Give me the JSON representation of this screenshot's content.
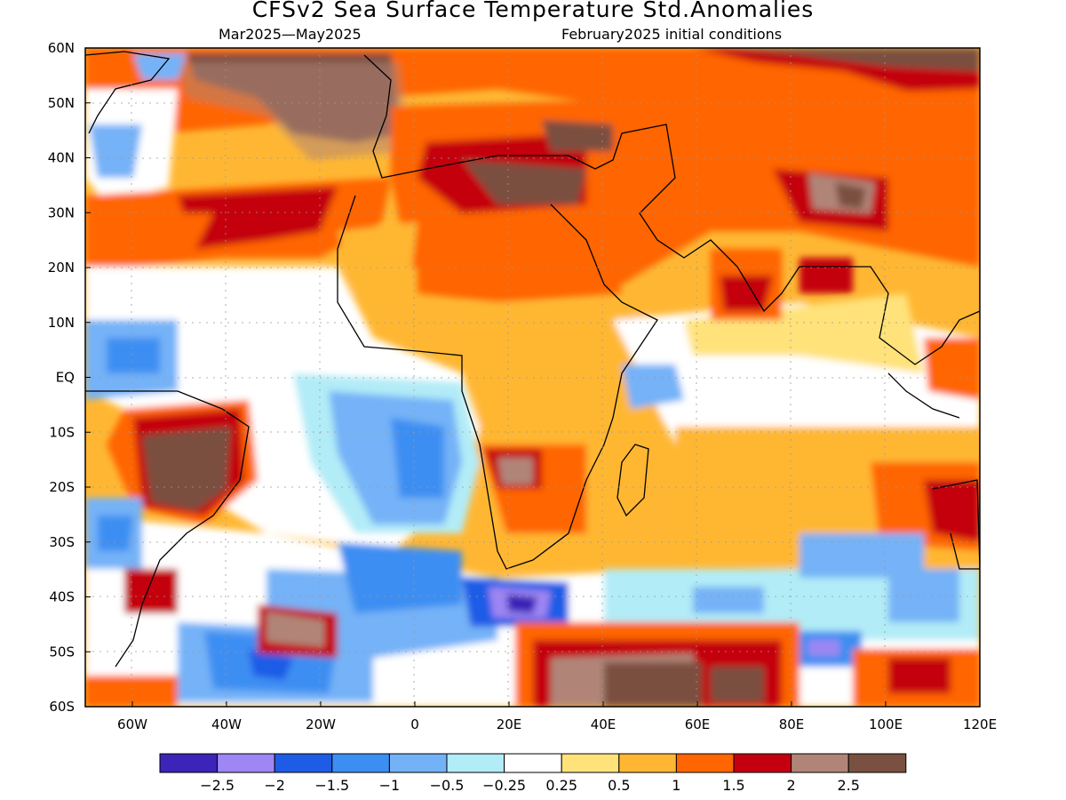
{
  "title": "CFSv2 Sea Surface Temperature Std.Anomalies",
  "subtitle_left": "Mar2025—May2025",
  "subtitle_right": "February2025 initial conditions",
  "axes": {
    "lat_labels": [
      "60N",
      "50N",
      "40N",
      "30N",
      "20N",
      "10N",
      "EQ",
      "10S",
      "20S",
      "30S",
      "40S",
      "50S",
      "60S"
    ],
    "lat_values": [
      60,
      50,
      40,
      30,
      20,
      10,
      0,
      -10,
      -20,
      -30,
      -40,
      -50,
      -60
    ],
    "lon_labels": [
      "60W",
      "40W",
      "20W",
      "0",
      "20E",
      "40E",
      "60E",
      "80E",
      "100E",
      "120E"
    ],
    "lon_values": [
      -60,
      -40,
      -20,
      0,
      20,
      40,
      60,
      80,
      100,
      120
    ],
    "lon_range": [
      -70,
      120
    ],
    "lat_range": [
      -60,
      60
    ],
    "grid": "dotted"
  },
  "colorbar": {
    "colors": [
      "#3b24b7",
      "#9e86f4",
      "#1f5ce6",
      "#3c8ef2",
      "#74b2f7",
      "#b2ecf7",
      "#ffffff",
      "#ffe27a",
      "#ffb733",
      "#ff6500",
      "#c40010",
      "#b08578",
      "#7a5040"
    ],
    "labels": [
      "−2.5",
      "−2",
      "−1.5",
      "−1",
      "−0.5",
      "−0.25",
      "0.25",
      "0.5",
      "1",
      "1.5",
      "2",
      "2.5"
    ]
  },
  "chart_data": {
    "type": "heatmap",
    "title": "CFSv2 Sea Surface Temperature Std.Anomalies",
    "subtitle": "Mar2025—May2025 / February2025 initial conditions",
    "variable": "Sea Surface Temperature Std.Anomalies",
    "xlim": [
      -70,
      120
    ],
    "ylim": [
      -60,
      60
    ],
    "levels": [
      -2.5,
      -2,
      -1.5,
      -1,
      -0.5,
      -0.25,
      0.25,
      0.5,
      1,
      1.5,
      2,
      2.5
    ],
    "regions": [
      {
        "lon": -30,
        "lat": 52,
        "value": 2.5
      },
      {
        "lon": 0,
        "lat": 55,
        "value": 1.5
      },
      {
        "lon": 60,
        "lat": 55,
        "value": 1.5
      },
      {
        "lon": 105,
        "lat": 57,
        "value": 2
      },
      {
        "lon": 22,
        "lat": 34,
        "value": 2.5
      },
      {
        "lon": 85,
        "lat": 33,
        "value": 2.5
      },
      {
        "lon": -40,
        "lat": 30,
        "value": 2
      },
      {
        "lon": 20,
        "lat": 20,
        "value": 1.5
      },
      {
        "lon": -68,
        "lat": 42,
        "value": -1
      },
      {
        "lon": -40,
        "lat": 45,
        "value": 0.25
      },
      {
        "lon": -55,
        "lat": -15,
        "value": 2.5
      },
      {
        "lon": 0,
        "lat": -10,
        "value": -1
      },
      {
        "lon": 10,
        "lat": -20,
        "value": -1
      },
      {
        "lon": 15,
        "lat": -35,
        "value": -1.5
      },
      {
        "lon": 22,
        "lat": -41,
        "value": -2.5
      },
      {
        "lon": -25,
        "lat": -45,
        "value": -1.5
      },
      {
        "lon": -15,
        "lat": -52,
        "value": -2
      },
      {
        "lon": 50,
        "lat": -55,
        "value": 2.5
      },
      {
        "lon": 68,
        "lat": -56,
        "value": 2.5
      },
      {
        "lon": 90,
        "lat": -48,
        "value": -1.5
      },
      {
        "lon": 70,
        "lat": -35,
        "value": -0.5
      },
      {
        "lon": 65,
        "lat": 0,
        "value": 0.25
      },
      {
        "lon": 45,
        "lat": 5,
        "value": -0.5
      },
      {
        "lon": 25,
        "lat": -15,
        "value": 2
      },
      {
        "lon": 100,
        "lat": -20,
        "value": 1
      },
      {
        "lon": 112,
        "lat": -25,
        "value": 2
      }
    ]
  }
}
